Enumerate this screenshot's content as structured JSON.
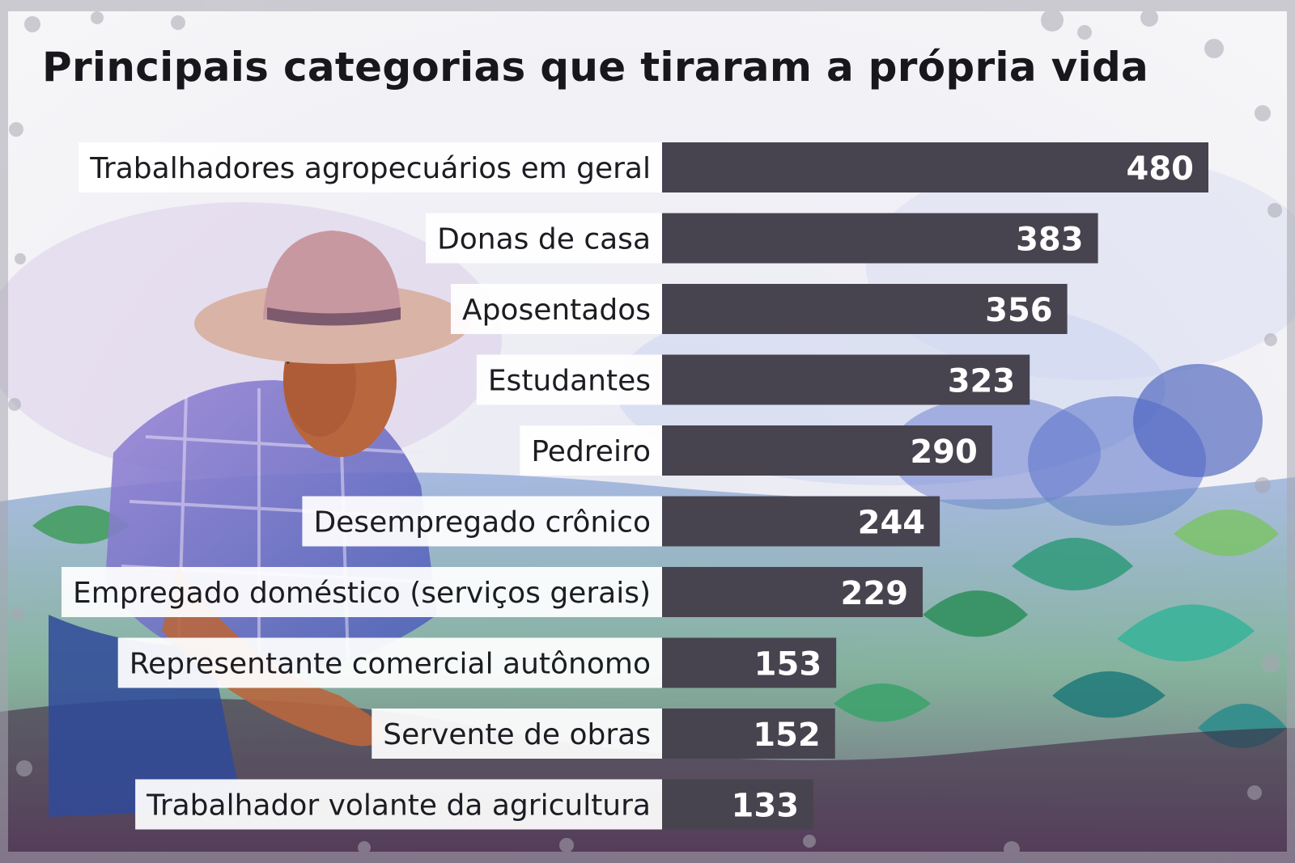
{
  "title": "Principais categorias que tiraram a própria vida",
  "colors": {
    "bar": "#48444f",
    "value_text": "#ffffff",
    "label_bg": "#ffffff",
    "label_text": "#1c1c22",
    "title_text": "#17171c"
  },
  "illustration": {
    "description_icon": "farmer-in-crop-field-watercolor"
  },
  "chart_data": {
    "type": "bar",
    "orientation": "horizontal",
    "title": "Principais categorias que tiraram a própria vida",
    "categories": [
      "Trabalhadores agropecuários em geral",
      "Donas de casa",
      "Aposentados",
      "Estudantes",
      "Pedreiro",
      "Desempregado crônico",
      "Empregado doméstico (serviços gerais)",
      "Representante comercial autônomo",
      "Servente de obras",
      "Trabalhador volante da agricultura"
    ],
    "values": [
      480,
      383,
      356,
      323,
      290,
      244,
      229,
      153,
      152,
      133
    ],
    "xlabel": "",
    "ylabel": "",
    "xlim": [
      0,
      480
    ],
    "grid": false,
    "legend": "none"
  }
}
